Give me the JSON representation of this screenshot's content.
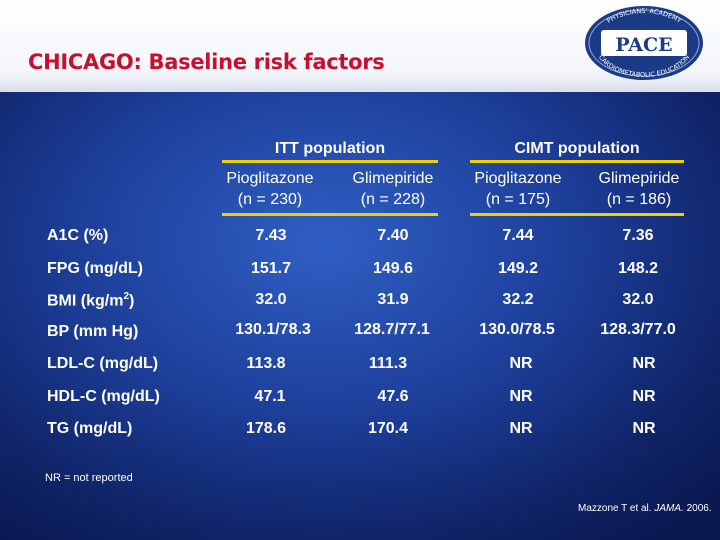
{
  "header": {
    "title": "CHICAGO: Baseline risk factors",
    "logo": {
      "top_text": "PHYSICIANS' ACADEMY",
      "bottom_text": "CARDIOMETABOLIC EDUCATION",
      "center": "PACE"
    }
  },
  "table": {
    "groups": [
      "ITT population",
      "CIMT population"
    ],
    "columns": [
      {
        "name": "Pioglitazone",
        "n": "(n = 230)"
      },
      {
        "name": "Glimepiride",
        "n": "(n = 228)"
      },
      {
        "name": "Pioglitazone",
        "n": "(n = 175)"
      },
      {
        "name": "Glimepiride",
        "n": "(n = 186)"
      }
    ],
    "rows": [
      {
        "label": "A1C (%)",
        "values": [
          "7.43",
          "7.40",
          "7.44",
          "7.36"
        ]
      },
      {
        "label": "FPG (mg/dL)",
        "values": [
          "151.7",
          "149.6",
          "149.2",
          "148.2"
        ]
      },
      {
        "label_pre": "BMI (kg/m",
        "label_sup": "2",
        "label_post": ")",
        "values": [
          "32.0",
          "31.9",
          "32.2",
          "32.0"
        ]
      },
      {
        "label": "BP (mm Hg)",
        "values": [
          "130.1/78.3",
          "128.7/77.1",
          "130.0/78.5",
          "128.3/77.0"
        ]
      },
      {
        "label": "LDL-C (mg/dL)",
        "values": [
          "113.8",
          "111.3",
          "NR",
          "NR"
        ]
      },
      {
        "label": "HDL-C (mg/dL)",
        "values": [
          "47.1",
          "47.6",
          "NR",
          "NR"
        ]
      },
      {
        "label": "TG (mg/dL)",
        "values": [
          "178.6",
          "170.4",
          "NR",
          "NR"
        ]
      }
    ]
  },
  "footnote": "NR = not reported",
  "citation": {
    "authors": "Mazzone T et al.",
    "journal": "JAMA.",
    "year": "2006."
  },
  "colors": {
    "title": "#c8102e",
    "rule": "#f2cf00",
    "background": "#1d3f9a"
  }
}
